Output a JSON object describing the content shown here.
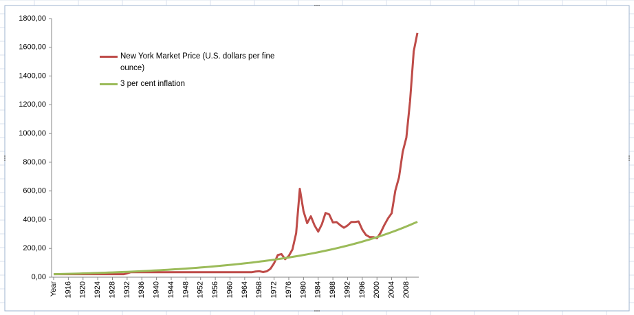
{
  "chart_data": {
    "type": "line",
    "categories": [
      "Year",
      null,
      null,
      null,
      1916,
      null,
      null,
      null,
      1920,
      null,
      null,
      null,
      1924,
      null,
      null,
      null,
      1928,
      null,
      null,
      null,
      1932,
      null,
      null,
      null,
      1936,
      null,
      null,
      null,
      1940,
      null,
      null,
      null,
      1944,
      null,
      null,
      null,
      1948,
      null,
      null,
      null,
      1952,
      null,
      null,
      null,
      1956,
      null,
      null,
      null,
      1960,
      null,
      null,
      null,
      1964,
      null,
      null,
      null,
      1968,
      null,
      null,
      null,
      1972,
      null,
      null,
      null,
      1976,
      null,
      null,
      null,
      1980,
      null,
      null,
      null,
      1984,
      null,
      null,
      null,
      1988,
      null,
      null,
      null,
      1992,
      null,
      null,
      null,
      1996,
      null,
      null,
      null,
      2000,
      null,
      null,
      null,
      2004,
      null,
      null,
      null,
      2008,
      null,
      null,
      null
    ],
    "series": [
      {
        "name": "New York Market Price (U.S. dollars per fine ounce)",
        "color": "#be4b48",
        "values": [
          20.67,
          20.67,
          20.67,
          20.67,
          20.67,
          20.67,
          20.67,
          20.67,
          20.67,
          20.67,
          20.67,
          20.67,
          20.67,
          20.67,
          20.67,
          20.67,
          20.67,
          20.67,
          20.67,
          20.67,
          26.33,
          35,
          35,
          35,
          35,
          35,
          35,
          35,
          35,
          35,
          35,
          35,
          35,
          35,
          35,
          35,
          35,
          35,
          35,
          35,
          35,
          35,
          35,
          35,
          35,
          35,
          35,
          35,
          35,
          35,
          35,
          35,
          35,
          35,
          35,
          39.31,
          41.28,
          36.02,
          40.62,
          58.42,
          97.39,
          154,
          160.86,
          124.74,
          147.84,
          193.4,
          306,
          615,
          460,
          376,
          424,
          361,
          317,
          368,
          447,
          437,
          381,
          383.5,
          362,
          344,
          360,
          384,
          384,
          388,
          331,
          294,
          279,
          279,
          271,
          310,
          363,
          409,
          445,
          603,
          695,
          872,
          972,
          1225,
          1572,
          1700
        ]
      },
      {
        "name": "3 per cent inflation",
        "color": "#9bbb59",
        "values": [
          20.67,
          21.29,
          21.93,
          22.59,
          23.26,
          23.96,
          24.68,
          25.42,
          26.18,
          26.97,
          27.78,
          28.61,
          29.47,
          30.35,
          31.27,
          32.2,
          33.17,
          34.16,
          35.19,
          36.24,
          37.33,
          38.45,
          39.61,
          40.79,
          42.02,
          43.28,
          44.58,
          45.91,
          47.29,
          48.71,
          50.17,
          51.68,
          53.23,
          54.82,
          56.47,
          58.16,
          59.91,
          61.7,
          63.56,
          65.46,
          67.43,
          69.45,
          71.53,
          73.68,
          75.89,
          78.17,
          80.51,
          82.93,
          85.41,
          87.98,
          90.62,
          93.33,
          96.13,
          99.02,
          101.99,
          105.05,
          108.2,
          111.45,
          114.79,
          118.23,
          121.78,
          125.43,
          129.2,
          133.07,
          137.06,
          141.18,
          145.41,
          149.77,
          154.27,
          158.89,
          163.66,
          168.57,
          173.63,
          178.84,
          184.2,
          189.73,
          195.42,
          201.28,
          207.32,
          213.54,
          219.95,
          226.54,
          233.34,
          240.34,
          247.55,
          254.98,
          262.63,
          270.51,
          278.62,
          286.98,
          295.59,
          304.46,
          313.59,
          323,
          332.69,
          342.67,
          352.95,
          363.54,
          374.45,
          385.68
        ]
      }
    ],
    "ylim": [
      0,
      1800
    ],
    "yticks": [
      {
        "value": 0,
        "label": "0,00"
      },
      {
        "value": 200,
        "label": "200,00"
      },
      {
        "value": 400,
        "label": "400,00"
      },
      {
        "value": 600,
        "label": "600,00"
      },
      {
        "value": 800,
        "label": "800,00"
      },
      {
        "value": 1000,
        "label": "1000,00"
      },
      {
        "value": 1200,
        "label": "1200,00"
      },
      {
        "value": 1400,
        "label": "1400,00"
      },
      {
        "value": 1600,
        "label": "1600,00"
      },
      {
        "value": 1800,
        "label": "1800,00"
      }
    ],
    "grid": false
  }
}
